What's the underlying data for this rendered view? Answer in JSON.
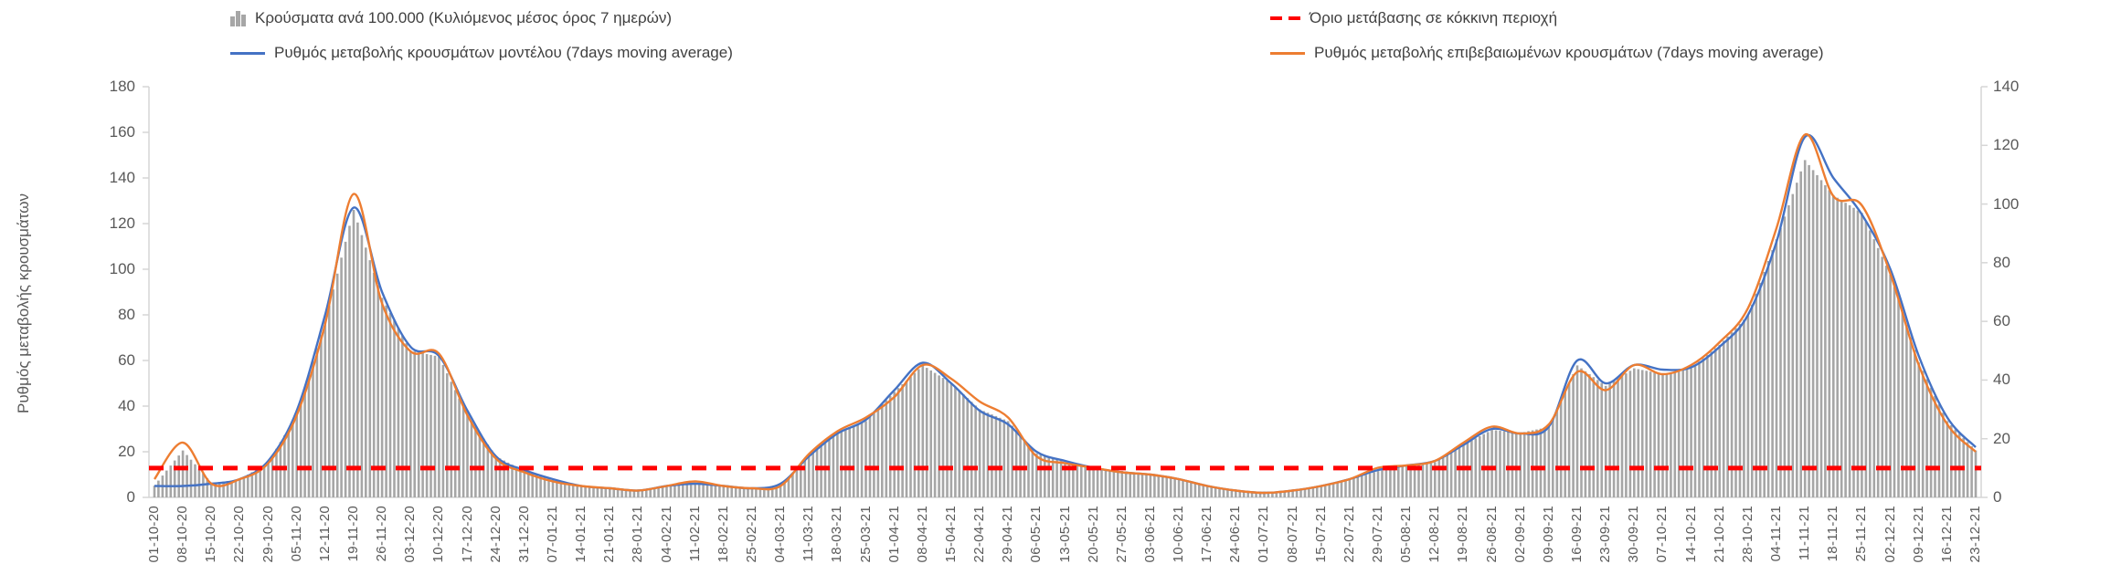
{
  "legend": {
    "cases_bars": "Κρούσματα ανά 100.000 (Κυλιόμενος μέσος όρος 7 ημερών)",
    "model_line": "Ρυθμός μεταβολής κρουσμάτων μοντέλου (7days moving average)",
    "threshold": "Όριο μετάβασης σε κόκκινη περιοχή",
    "confirmed_line": "Ρυθμός μεταβολής επιβεβαιωμένων κρουσμάτων (7days moving average)"
  },
  "chart_data": {
    "type": "bar",
    "title": "",
    "ylabel": "Ρυθμός μεταβολής κρουσμάτων",
    "xlabel": "",
    "grid": false,
    "legend_position": "top",
    "left_axis": {
      "min": 0,
      "max": 180,
      "step": 20
    },
    "right_axis": {
      "min": 0,
      "max": 140,
      "step": 20
    },
    "categories": [
      "01-10-20",
      "08-10-20",
      "15-10-20",
      "22-10-20",
      "29-10-20",
      "05-11-20",
      "12-11-20",
      "19-11-20",
      "26-11-20",
      "03-12-20",
      "10-12-20",
      "17-12-20",
      "24-12-20",
      "31-12-20",
      "07-01-21",
      "14-01-21",
      "21-01-21",
      "28-01-21",
      "04-02-21",
      "11-02-21",
      "18-02-21",
      "25-02-21",
      "04-03-21",
      "11-03-21",
      "18-03-21",
      "25-03-21",
      "01-04-21",
      "08-04-21",
      "15-04-21",
      "22-04-21",
      "29-04-21",
      "06-05-21",
      "13-05-21",
      "20-05-21",
      "27-05-21",
      "03-06-21",
      "10-06-21",
      "17-06-21",
      "24-06-21",
      "01-07-21",
      "08-07-21",
      "15-07-21",
      "22-07-21",
      "29-07-21",
      "05-08-21",
      "12-08-21",
      "19-08-21",
      "26-08-21",
      "02-09-21",
      "09-09-21",
      "16-09-21",
      "23-09-21",
      "30-09-21",
      "07-10-21",
      "14-10-21",
      "21-10-21",
      "28-10-21",
      "04-11-21",
      "11-11-21",
      "18-11-21",
      "25-11-21",
      "02-12-21",
      "09-12-21",
      "16-12-21",
      "23-12-21"
    ],
    "series": [
      {
        "name": "Κρούσματα ανά 100.000 (Κυλιόμενος μέσος όρος 7 ημερών)",
        "type": "bar",
        "axis": "right",
        "color": "#a6a6a6",
        "values": [
          4,
          16,
          5,
          6,
          12,
          28,
          60,
          98,
          68,
          50,
          48,
          28,
          14,
          9,
          6,
          4,
          3,
          2,
          4,
          5,
          4,
          3,
          4,
          14,
          22,
          26,
          36,
          45,
          39,
          30,
          26,
          15,
          12,
          10,
          9,
          8,
          6,
          4,
          2,
          2,
          2,
          4,
          6,
          9,
          11,
          12,
          18,
          23,
          22,
          24,
          45,
          38,
          44,
          42,
          44,
          52,
          62,
          88,
          115,
          103,
          97,
          76,
          46,
          26,
          16
        ]
      },
      {
        "name": "Ρυθμός μεταβολής κρουσμάτων μοντέλου (7days moving average)",
        "type": "line",
        "axis": "left",
        "color": "#4472c4",
        "values": [
          5,
          5,
          6,
          8,
          16,
          38,
          80,
          127,
          90,
          66,
          62,
          38,
          18,
          12,
          8,
          5,
          4,
          3,
          5,
          6,
          5,
          4,
          6,
          18,
          28,
          34,
          47,
          59,
          50,
          38,
          32,
          20,
          16,
          13,
          11,
          10,
          8,
          5,
          3,
          2,
          3,
          5,
          8,
          12,
          14,
          16,
          23,
          30,
          28,
          31,
          60,
          50,
          58,
          56,
          57,
          66,
          80,
          112,
          158,
          140,
          124,
          100,
          62,
          35,
          22
        ]
      },
      {
        "name": "Ρυθμός μεταβολής επιβεβαιωμένων κρουσμάτων (7days moving average)",
        "type": "line",
        "axis": "left",
        "color": "#ed7d31",
        "values": [
          8,
          24,
          6,
          8,
          15,
          36,
          76,
          133,
          85,
          64,
          63,
          36,
          17,
          11,
          7,
          5,
          4,
          3,
          5,
          7,
          5,
          4,
          5,
          19,
          29,
          35,
          44,
          58,
          52,
          42,
          35,
          18,
          15,
          13,
          11,
          10,
          8,
          5,
          3,
          2,
          3,
          5,
          8,
          13,
          14,
          16,
          24,
          31,
          28,
          32,
          55,
          47,
          58,
          54,
          58,
          68,
          83,
          118,
          159,
          132,
          128,
          98,
          58,
          32,
          20
        ]
      },
      {
        "name": "Όριο μετάβασης σε κόκκινη περιοχή",
        "type": "threshold",
        "axis": "right",
        "color": "#ff0000",
        "value": 10
      }
    ]
  }
}
